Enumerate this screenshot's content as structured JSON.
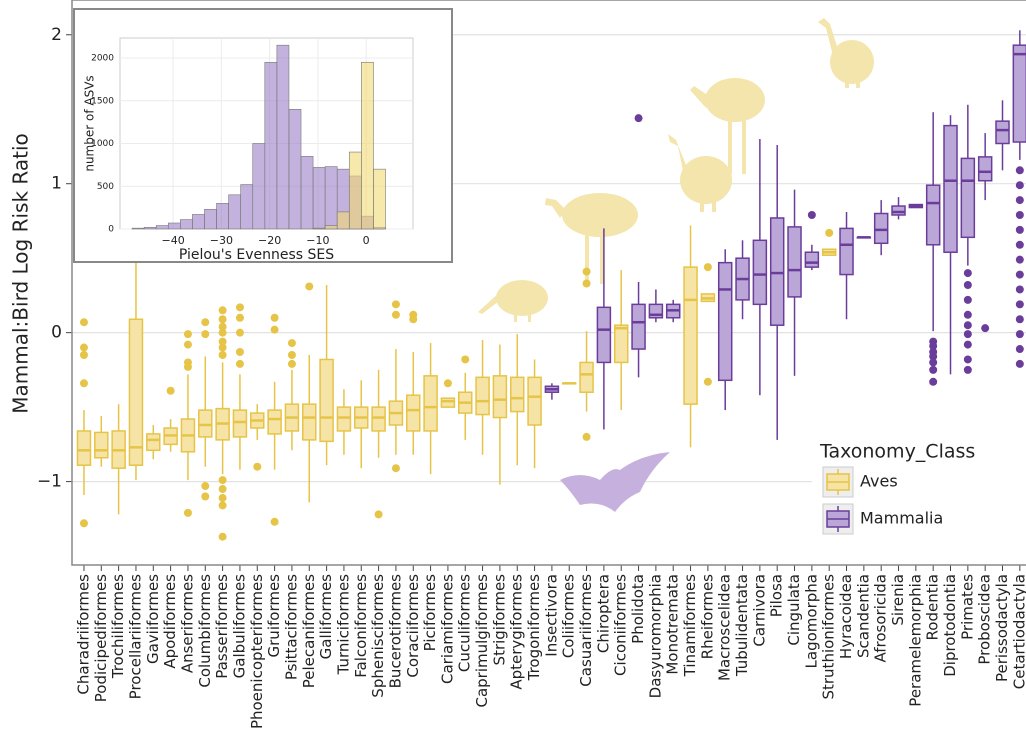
{
  "chart_data": [
    {
      "type": "box",
      "ylabel": "Mammal:Bird Log Risk Ratio",
      "legend_title": "Taxonomy_Class",
      "legend": "lower right",
      "grid": true,
      "ylim": [
        -1.56,
        2.22
      ],
      "yticks": [
        {
          "value": -1,
          "label": "−1"
        },
        0,
        1,
        2
      ],
      "categories": [
        "Charadriiformes",
        "Podicipediformes",
        "Trochiliformes",
        "Procellariiformes",
        "Gaviiformes",
        "Apodiformes",
        "Anseriformes",
        "Columbiformes",
        "Passeriformes",
        "Galbuliformes",
        "Phoenicopteriformes",
        "Gruiformes",
        "Psittaciformes",
        "Pelecaniformes",
        "Galliformes",
        "Turniciformes",
        "Falconiformes",
        "Sphenisciformes",
        "Bucerotiformes",
        "Coraciiformes",
        "Piciformes",
        "Cariamiformes",
        "Cuculiformes",
        "Caprimulgiformes",
        "Strigiformes",
        "Apterygiformes",
        "Trogoniformes",
        "Insectivora",
        "Coliiformes",
        "Casuariiformes",
        "Chiroptera",
        "Ciconiiformes",
        "Pholidota",
        "Dasyuromorphia",
        "Monotremata",
        "Tinamiformes",
        "Rheiformes",
        "Macroscelidea",
        "Tubulidentata",
        "Carnivora",
        "Pilosa",
        "Cingulata",
        "Lagomorpha",
        "Struthioniformes",
        "Hyracoidea",
        "Scandentia",
        "Afrosoricida",
        "Sirenia",
        "Peramelemorphia",
        "Rodentia",
        "Diprotodontia",
        "Primates",
        "Proboscidea",
        "Perissodactyla",
        "Cetartiodactyla"
      ],
      "series": [
        {
          "name": "Aves",
          "color": "#f5e4a6",
          "edgecolor": "#e6c447",
          "values": [
            {
              "whislo": -1.09,
              "q1": -0.89,
              "median": -0.79,
              "q3": -0.66,
              "whishi": -0.52,
              "fliers": [
                0.07,
                -0.1,
                -0.15,
                -0.34,
                -1.28
              ]
            },
            {
              "whislo": -0.9,
              "q1": -0.84,
              "median": -0.79,
              "q3": -0.67,
              "whishi": -0.56,
              "fliers": []
            },
            {
              "whislo": -1.22,
              "q1": -0.91,
              "median": -0.79,
              "q3": -0.66,
              "whishi": -0.48,
              "fliers": []
            },
            {
              "whislo": -0.99,
              "q1": -0.89,
              "median": -0.77,
              "q3": 0.09,
              "whishi": 0.49,
              "fliers": []
            },
            {
              "whislo": -0.85,
              "q1": -0.79,
              "median": -0.72,
              "q3": -0.68,
              "whishi": -0.62,
              "fliers": []
            },
            {
              "whislo": -0.8,
              "q1": -0.75,
              "median": -0.69,
              "q3": -0.64,
              "whishi": -0.58,
              "fliers": [
                -0.39
              ]
            },
            {
              "whislo": -0.99,
              "q1": -0.8,
              "median": -0.69,
              "q3": -0.58,
              "whishi": -0.28,
              "fliers": [
                -0.01,
                -0.08,
                -0.2,
                -0.23,
                -1.21
              ]
            },
            {
              "whislo": -0.9,
              "q1": -0.7,
              "median": -0.62,
              "q3": -0.52,
              "whishi": -0.16,
              "fliers": [
                0.07,
                -0.01,
                -1.03,
                -1.1
              ]
            },
            {
              "whislo": -0.95,
              "q1": -0.72,
              "median": -0.61,
              "q3": -0.51,
              "whishi": -0.2,
              "fliers": [
                0.15,
                0.09,
                0.04,
                0,
                -0.06,
                -0.1,
                -0.15,
                -0.99,
                -1.05,
                -1.11,
                -1.16,
                -1.37
              ]
            },
            {
              "whislo": -0.92,
              "q1": -0.7,
              "median": -0.6,
              "q3": -0.52,
              "whishi": -0.28,
              "fliers": [
                0.17,
                0.1,
                0,
                -0.13,
                -0.21
              ]
            },
            {
              "whislo": -0.72,
              "q1": -0.64,
              "median": -0.59,
              "q3": -0.54,
              "whishi": -0.48,
              "fliers": [
                -0.9
              ]
            },
            {
              "whislo": -0.92,
              "q1": -0.68,
              "median": -0.58,
              "q3": -0.52,
              "whishi": -0.33,
              "fliers": [
                0.1,
                0.02,
                -1.27
              ]
            },
            {
              "whislo": -0.79,
              "q1": -0.66,
              "median": -0.57,
              "q3": -0.48,
              "whishi": -0.25,
              "fliers": [
                -0.07,
                -0.15,
                -0.21
              ]
            },
            {
              "whislo": -1.14,
              "q1": -0.72,
              "median": -0.57,
              "q3": -0.48,
              "whishi": -0.15,
              "fliers": [
                0.31
              ]
            },
            {
              "whislo": -0.89,
              "q1": -0.73,
              "median": -0.57,
              "q3": -0.18,
              "whishi": 0.32,
              "fliers": []
            },
            {
              "whislo": -0.82,
              "q1": -0.66,
              "median": -0.57,
              "q3": -0.5,
              "whishi": -0.38,
              "fliers": []
            },
            {
              "whislo": -0.91,
              "q1": -0.64,
              "median": -0.57,
              "q3": -0.5,
              "whishi": -0.32,
              "fliers": []
            },
            {
              "whislo": -0.84,
              "q1": -0.66,
              "median": -0.57,
              "q3": -0.5,
              "whishi": -0.25,
              "fliers": [
                -1.22
              ]
            },
            {
              "whislo": -0.82,
              "q1": -0.62,
              "median": -0.54,
              "q3": -0.46,
              "whishi": -0.11,
              "fliers": [
                0.19,
                0.12,
                -0.91
              ]
            },
            {
              "whislo": -0.82,
              "q1": -0.66,
              "median": -0.52,
              "q3": -0.42,
              "whishi": -0.13,
              "fliers": [
                0.12,
                0.09
              ]
            },
            {
              "whislo": -0.95,
              "q1": -0.66,
              "median": -0.5,
              "q3": -0.29,
              "whishi": -0.07,
              "fliers": []
            },
            {
              "whislo": -0.5,
              "q1": -0.5,
              "median": -0.46,
              "q3": -0.44,
              "whishi": -0.44,
              "fliers": [
                -0.34
              ]
            },
            {
              "whislo": -0.72,
              "q1": -0.54,
              "median": -0.47,
              "q3": -0.4,
              "whishi": -0.27,
              "fliers": [
                -0.18
              ]
            },
            {
              "whislo": -0.82,
              "q1": -0.55,
              "median": -0.46,
              "q3": -0.3,
              "whishi": -0.05,
              "fliers": []
            },
            {
              "whislo": -1.02,
              "q1": -0.57,
              "median": -0.45,
              "q3": -0.29,
              "whishi": -0.08,
              "fliers": []
            },
            {
              "whislo": -0.89,
              "q1": -0.53,
              "median": -0.44,
              "q3": -0.3,
              "whishi": -0.01,
              "fliers": []
            },
            {
              "whislo": -0.91,
              "q1": -0.62,
              "median": -0.43,
              "q3": -0.3,
              "whishi": -0.18,
              "fliers": []
            },
            null,
            {
              "whislo": -0.34,
              "q1": -0.34,
              "median": -0.34,
              "q3": -0.34,
              "whishi": -0.34,
              "fliers": []
            },
            {
              "whislo": -0.53,
              "q1": -0.4,
              "median": -0.28,
              "q3": -0.2,
              "whishi": 0.01,
              "fliers": [
                0.41,
                0.33,
                -0.7
              ]
            },
            null,
            {
              "whislo": -0.52,
              "q1": -0.2,
              "median": 0.03,
              "q3": 0.05,
              "whishi": 0.42,
              "fliers": []
            },
            null,
            null,
            null,
            {
              "whislo": -0.77,
              "q1": -0.48,
              "median": 0.22,
              "q3": 0.44,
              "whishi": 0.72,
              "fliers": []
            },
            {
              "whislo": 0.21,
              "q1": 0.21,
              "median": 0.23,
              "q3": 0.26,
              "whishi": 0.26,
              "fliers": [
                0.44,
                -0.33
              ]
            },
            null,
            null,
            null,
            null,
            null,
            null,
            {
              "whislo": 0.52,
              "q1": 0.52,
              "median": 0.54,
              "q3": 0.56,
              "whishi": 0.56,
              "fliers": [
                0.67
              ]
            },
            null,
            null,
            null,
            null,
            null,
            null,
            null,
            null,
            null,
            null,
            null
          ]
        },
        {
          "name": "Mammalia",
          "color": "#bba6d8",
          "edgecolor": "#6a3d9a",
          "values": [
            null,
            null,
            null,
            null,
            null,
            null,
            null,
            null,
            null,
            null,
            null,
            null,
            null,
            null,
            null,
            null,
            null,
            null,
            null,
            null,
            null,
            null,
            null,
            null,
            null,
            null,
            null,
            {
              "whislo": -0.45,
              "q1": -0.4,
              "median": -0.38,
              "q3": -0.36,
              "whishi": -0.34,
              "fliers": []
            },
            null,
            null,
            {
              "whislo": -0.65,
              "q1": -0.2,
              "median": 0.02,
              "q3": 0.17,
              "whishi": 0.7,
              "fliers": []
            },
            null,
            {
              "whislo": -0.3,
              "q1": -0.11,
              "median": 0.07,
              "q3": 0.19,
              "whishi": 0.34,
              "fliers": [
                1.44
              ]
            },
            {
              "whislo": 0.07,
              "q1": 0.1,
              "median": 0.12,
              "q3": 0.19,
              "whishi": 0.29,
              "fliers": []
            },
            {
              "whislo": 0.07,
              "q1": 0.1,
              "median": 0.15,
              "q3": 0.19,
              "whishi": 0.22,
              "fliers": []
            },
            null,
            null,
            {
              "whislo": -0.52,
              "q1": -0.32,
              "median": 0.29,
              "q3": 0.47,
              "whishi": 0.56,
              "fliers": []
            },
            {
              "whislo": 0.09,
              "q1": 0.22,
              "median": 0.36,
              "q3": 0.5,
              "whishi": 0.62,
              "fliers": []
            },
            {
              "whislo": -0.42,
              "q1": 0.19,
              "median": 0.39,
              "q3": 0.62,
              "whishi": 1.3,
              "fliers": []
            },
            {
              "whislo": -0.72,
              "q1": 0.05,
              "median": 0.4,
              "q3": 0.77,
              "whishi": 1.26,
              "fliers": []
            },
            {
              "whislo": -0.29,
              "q1": 0.24,
              "median": 0.42,
              "q3": 0.71,
              "whishi": 0.96,
              "fliers": []
            },
            {
              "whislo": 0.42,
              "q1": 0.44,
              "median": 0.47,
              "q3": 0.54,
              "whishi": 0.59,
              "fliers": [
                0.79
              ]
            },
            null,
            {
              "whislo": 0.09,
              "q1": 0.39,
              "median": 0.59,
              "q3": 0.7,
              "whishi": 0.81,
              "fliers": []
            },
            {
              "whislo": 0.64,
              "q1": 0.64,
              "median": 0.64,
              "q3": 0.64,
              "whishi": 0.64,
              "fliers": []
            },
            {
              "whislo": 0.52,
              "q1": 0.6,
              "median": 0.69,
              "q3": 0.8,
              "whishi": 0.89,
              "fliers": []
            },
            {
              "whislo": 0.76,
              "q1": 0.79,
              "median": 0.81,
              "q3": 0.85,
              "whishi": 0.91,
              "fliers": []
            },
            {
              "whislo": 0.84,
              "q1": 0.84,
              "median": 0.85,
              "q3": 0.86,
              "whishi": 0.86,
              "fliers": []
            },
            {
              "whislo": 0.01,
              "q1": 0.59,
              "median": 0.87,
              "q3": 0.99,
              "whishi": 1.48,
              "fliers": [
                -0.06,
                -0.09,
                -0.13,
                -0.16,
                -0.2,
                -0.25,
                -0.33
              ]
            },
            {
              "whislo": -0.28,
              "q1": 0.54,
              "median": 1.02,
              "q3": 1.39,
              "whishi": 1.46,
              "fliers": []
            },
            {
              "whislo": 0.45,
              "q1": 0.64,
              "median": 1.02,
              "q3": 1.17,
              "whishi": 1.53,
              "fliers": [
                0.4,
                0.32,
                0.22,
                0.12,
                0.05,
                -0.01,
                -0.08,
                -0.18,
                -0.25
              ]
            },
            {
              "whislo": 0.89,
              "q1": 1.02,
              "median": 1.08,
              "q3": 1.18,
              "whishi": 1.34,
              "fliers": [
                0.03
              ]
            },
            {
              "whislo": 1.09,
              "q1": 1.27,
              "median": 1.36,
              "q3": 1.42,
              "whishi": 1.56,
              "fliers": []
            },
            {
              "whislo": 1.16,
              "q1": 1.28,
              "median": 1.87,
              "q3": 1.93,
              "whishi": 2.03,
              "fliers": [
                1.09,
                0.99,
                0.89,
                0.79,
                0.69,
                0.59,
                0.49,
                0.39,
                0.29,
                0.19,
                0.09,
                -0.01,
                -0.11,
                -0.21
              ]
            }
          ]
        }
      ]
    },
    {
      "type": "histogram",
      "xlabel": "Pielou's Evenness SES",
      "ylabel": "number of ASVs",
      "grid": true,
      "xlim": [
        -51,
        9.7
      ],
      "ylim": [
        0,
        2234
      ],
      "xticks": [
        {
          "value": -40,
          "label": "−40"
        },
        {
          "value": -30,
          "label": "−30"
        },
        {
          "value": -20,
          "label": "−20"
        },
        {
          "value": -10,
          "label": "−10"
        },
        0
      ],
      "yticks": [
        0,
        500,
        1000,
        1500,
        2000
      ],
      "bins": [
        -48.5,
        -46,
        -43.5,
        -41,
        -38.5,
        -36,
        -33.5,
        -31,
        -28.5,
        -26,
        -23.5,
        -21,
        -18.5,
        -16,
        -13.5,
        -11,
        -8.5,
        -6,
        -3.5,
        -1,
        1.5,
        4
      ],
      "series": [
        {
          "color": "#9b7fc6",
          "values": [
            10,
            20,
            40,
            70,
            110,
            170,
            230,
            300,
            400,
            520,
            1000,
            1950,
            2150,
            1400,
            850,
            720,
            730,
            700,
            620,
            150,
            20
          ]
        },
        {
          "color": "#f2d873",
          "values": [
            0,
            0,
            0,
            0,
            0,
            0,
            0,
            0,
            0,
            0,
            0,
            0,
            0,
            0,
            0,
            10,
            40,
            200,
            900,
            1950,
            700
          ]
        }
      ]
    }
  ]
}
